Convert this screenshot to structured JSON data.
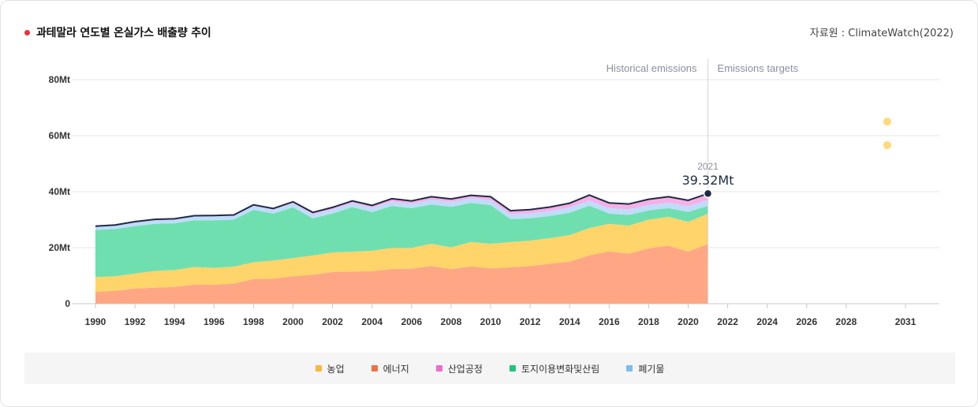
{
  "header": {
    "title": "과테말라 연도별 온실가스 배출량 추이",
    "source": "자료원 : ClimateWatch(2022)"
  },
  "phases": {
    "historical": "Historical emissions",
    "targets": "Emissions targets"
  },
  "tooltip": {
    "year": "2021",
    "value": "39.32Mt"
  },
  "legend": [
    {
      "label": "농업",
      "color": "#fbb73a"
    },
    {
      "label": "에너지",
      "color": "#f4703f"
    },
    {
      "label": "산업공정",
      "color": "#f06bd0"
    },
    {
      "label": "토지이용변화및산림",
      "color": "#22c47a"
    },
    {
      "label": "폐기물",
      "color": "#7cbcf0"
    }
  ],
  "chart_data": {
    "type": "area",
    "stacked": true,
    "x": [
      1990,
      1991,
      1992,
      1993,
      1994,
      1995,
      1996,
      1997,
      1998,
      1999,
      2000,
      2001,
      2002,
      2003,
      2004,
      2005,
      2006,
      2007,
      2008,
      2009,
      2010,
      2011,
      2012,
      2013,
      2014,
      2015,
      2016,
      2017,
      2018,
      2019,
      2020,
      2021
    ],
    "x_ticks": [
      "1990",
      "1992",
      "1994",
      "1996",
      "1998",
      "2000",
      "2002",
      "2004",
      "2006",
      "2008",
      "2010",
      "2012",
      "2014",
      "2016",
      "2018",
      "2020",
      "2022",
      "2024",
      "2026",
      "2028",
      "2031"
    ],
    "x_tick_values": [
      1990,
      1992,
      1994,
      1996,
      1998,
      2000,
      2002,
      2004,
      2006,
      2008,
      2010,
      2012,
      2014,
      2016,
      2018,
      2020,
      2022,
      2024,
      2026,
      2028,
      2031
    ],
    "xlim": [
      1990,
      2032.5
    ],
    "y_ticks": [
      "0",
      "20Mt",
      "40Mt",
      "60Mt",
      "80Mt"
    ],
    "y_tick_values": [
      0,
      20,
      40,
      60,
      80
    ],
    "ylim": [
      0,
      80
    ],
    "unit": "Mt",
    "series": [
      {
        "name": "에너지",
        "color": "#ffa784",
        "values": [
          4.2,
          4.6,
          5.4,
          5.7,
          6.0,
          6.8,
          6.8,
          7.1,
          8.8,
          8.9,
          9.8,
          10.3,
          11.3,
          11.5,
          11.6,
          12.4,
          12.5,
          13.5,
          12.3,
          13.3,
          12.6,
          13.0,
          13.4,
          14.3,
          15.0,
          17.3,
          18.7,
          17.9,
          19.8,
          20.7,
          18.6,
          21.3
        ]
      },
      {
        "name": "농업",
        "color": "#ffd46a",
        "values": [
          5.3,
          5.2,
          5.4,
          6.0,
          6.0,
          6.3,
          6.0,
          6.1,
          6.0,
          6.5,
          6.5,
          6.9,
          7.0,
          7.1,
          7.3,
          7.5,
          7.4,
          7.9,
          7.8,
          8.7,
          8.8,
          9.0,
          9.1,
          9.1,
          9.5,
          9.7,
          9.8,
          10.0,
          10.2,
          10.3,
          10.6,
          10.8
        ]
      },
      {
        "name": "토지이용변화및산림",
        "color": "#6fdfb0",
        "values": [
          16.8,
          16.9,
          16.9,
          16.8,
          16.7,
          16.7,
          17.0,
          16.8,
          18.7,
          16.8,
          18.1,
          13.3,
          13.9,
          15.9,
          13.8,
          15.0,
          14.2,
          14.0,
          14.5,
          14.0,
          13.8,
          8.2,
          8.0,
          7.9,
          8.0,
          8.0,
          3.7,
          3.8,
          3.3,
          3.1,
          3.6,
          2.8
        ]
      },
      {
        "name": "폐기물",
        "color": "#bfdcf9",
        "values": [
          1.2,
          1.2,
          1.3,
          1.3,
          1.3,
          1.3,
          1.4,
          1.4,
          1.4,
          1.4,
          1.5,
          1.5,
          1.5,
          1.5,
          1.6,
          1.6,
          1.6,
          1.7,
          1.7,
          1.7,
          1.8,
          1.8,
          1.8,
          1.8,
          1.9,
          1.9,
          1.9,
          2.0,
          2.0,
          2.0,
          2.1,
          2.1
        ]
      },
      {
        "name": "산업공정",
        "color": "#f6b0e6",
        "values": [
          0.2,
          0.2,
          0.3,
          0.3,
          0.3,
          0.3,
          0.3,
          0.3,
          0.4,
          0.4,
          0.5,
          0.6,
          0.7,
          0.7,
          0.8,
          1.0,
          1.0,
          1.1,
          1.1,
          1.0,
          1.2,
          1.2,
          1.3,
          1.4,
          1.5,
          1.9,
          1.9,
          1.9,
          2.0,
          2.1,
          2.0,
          2.3
        ]
      }
    ],
    "total_line": {
      "color": "#1f2b45",
      "values": [
        27.7,
        28.1,
        29.3,
        30.1,
        30.3,
        31.4,
        31.5,
        31.7,
        35.3,
        34.0,
        36.4,
        32.6,
        34.4,
        36.7,
        35.1,
        37.5,
        36.7,
        38.2,
        37.4,
        38.7,
        38.2,
        33.2,
        33.6,
        34.5,
        35.9,
        38.8,
        36.0,
        35.6,
        37.3,
        38.2,
        36.9,
        39.32
      ]
    },
    "targets": {
      "color": "#ffd97a",
      "points": [
        {
          "x": 2030,
          "y": 65
        },
        {
          "x": 2030,
          "y": 56.6
        }
      ]
    }
  }
}
